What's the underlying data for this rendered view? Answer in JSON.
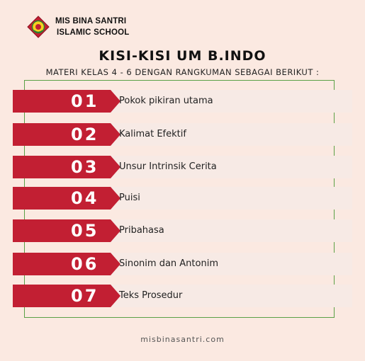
{
  "header": {
    "school_line1": "MIS BINA SANTRI",
    "school_line2": "ISLAMIC SCHOOL",
    "logo_icon": "school-shield-emblem"
  },
  "title": "KISI-KISI UM B.INDO",
  "subtitle": "MATERI KELAS 4 - 6 DENGAN RANGKUMAN SEBAGAI BERIKUT :",
  "items": [
    {
      "number": "01",
      "label": "Pokok pikiran utama"
    },
    {
      "number": "02",
      "label": "Kalimat Efektif"
    },
    {
      "number": "03",
      "label": "Unsur Intrinsik Cerita"
    },
    {
      "number": "04",
      "label": "Puisi"
    },
    {
      "number": "05",
      "label": "Pribahasa"
    },
    {
      "number": "06",
      "label": "Sinonim dan Antonim"
    },
    {
      "number": "07",
      "label": "Teks Prosedur"
    }
  ],
  "footer": "misbinasantri.com",
  "colors": {
    "background": "#fbe9e1",
    "accent": "#c21f33",
    "frame": "#5aa146"
  }
}
